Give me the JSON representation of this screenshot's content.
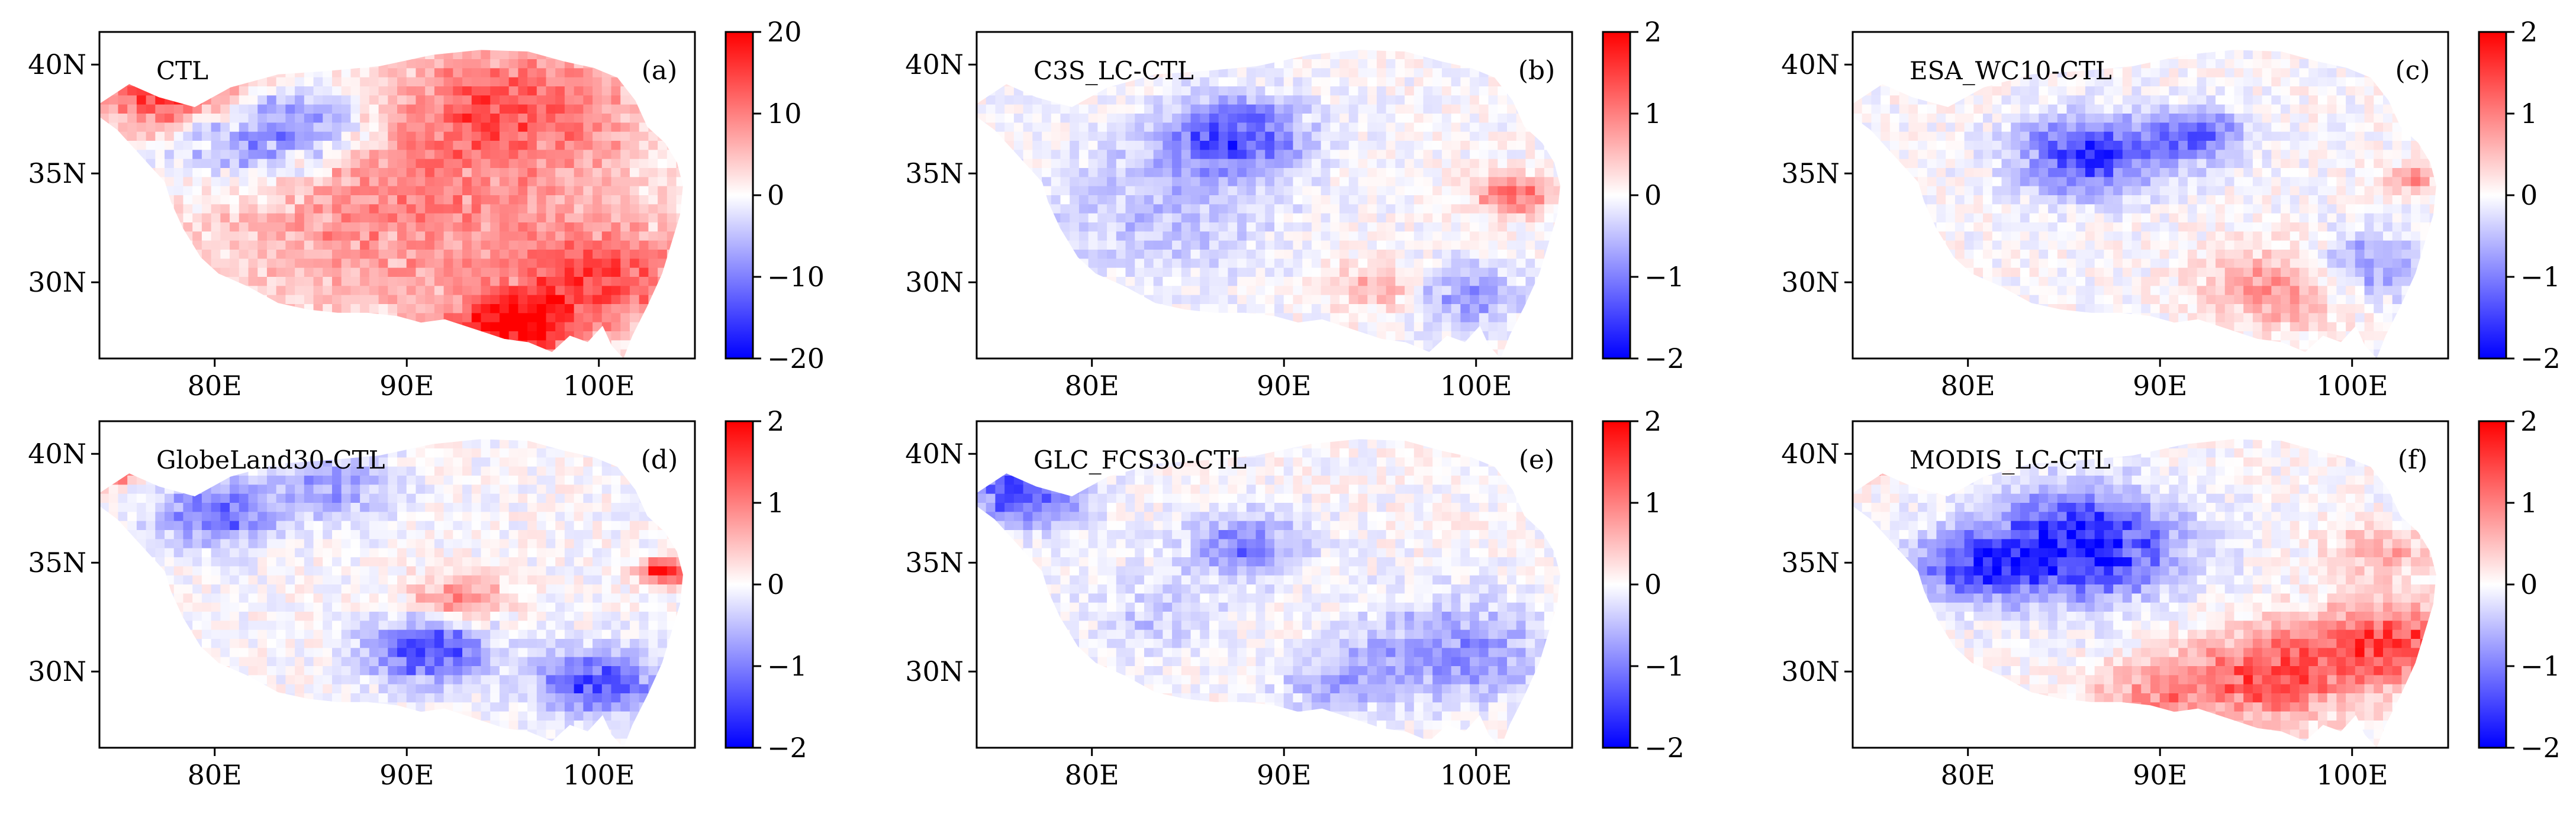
{
  "figure": {
    "type": "multi-panel gridded difference maps",
    "region": "Tibetan Plateau",
    "x_ticks": [
      "80E",
      "90E",
      "100E"
    ],
    "y_ticks": [
      "40N",
      "35N",
      "30N"
    ],
    "x_tick_values": [
      80,
      90,
      100
    ],
    "y_tick_values": [
      40,
      35,
      30
    ],
    "lon_range": [
      74,
      105
    ],
    "lat_range": [
      26.5,
      41.5
    ]
  },
  "colors": {
    "cmap_low": "#0000ff",
    "cmap_mid": "#ffffff",
    "cmap_high": "#ff0000",
    "land_outside": "#ffffff"
  },
  "chart_data": [
    {
      "type": "heatmap",
      "title": "CTL",
      "label": "(a)",
      "vmin": -20,
      "vmax": 20,
      "colorbar_ticks": [
        "20",
        "10",
        "0",
        "−10",
        "−20"
      ],
      "colorbar_tick_values": [
        20,
        10,
        0,
        -10,
        -20
      ],
      "xlim": [
        74,
        105
      ],
      "ylim": [
        26.5,
        41.5
      ]
    },
    {
      "type": "heatmap",
      "title": "C3S_LC-CTL",
      "label": "(b)",
      "vmin": -2,
      "vmax": 2,
      "colorbar_ticks": [
        "2",
        "1",
        "0",
        "−1",
        "−2"
      ],
      "colorbar_tick_values": [
        2,
        1,
        0,
        -1,
        -2
      ],
      "xlim": [
        74,
        105
      ],
      "ylim": [
        26.5,
        41.5
      ]
    },
    {
      "type": "heatmap",
      "title": "ESA_WC10-CTL",
      "label": "(c)",
      "vmin": -2,
      "vmax": 2,
      "colorbar_ticks": [
        "2",
        "1",
        "0",
        "−1",
        "−2"
      ],
      "colorbar_tick_values": [
        2,
        1,
        0,
        -1,
        -2
      ],
      "xlim": [
        74,
        105
      ],
      "ylim": [
        26.5,
        41.5
      ]
    },
    {
      "type": "heatmap",
      "title": "GlobeLand30-CTL",
      "label": "(d)",
      "vmin": -2,
      "vmax": 2,
      "colorbar_ticks": [
        "2",
        "1",
        "0",
        "−1",
        "−2"
      ],
      "colorbar_tick_values": [
        2,
        1,
        0,
        -1,
        -2
      ],
      "xlim": [
        74,
        105
      ],
      "ylim": [
        26.5,
        41.5
      ]
    },
    {
      "type": "heatmap",
      "title": "GLC_FCS30-CTL",
      "label": "(e)",
      "vmin": -2,
      "vmax": 2,
      "colorbar_ticks": [
        "2",
        "1",
        "0",
        "−1",
        "−2"
      ],
      "colorbar_tick_values": [
        2,
        1,
        0,
        -1,
        -2
      ],
      "xlim": [
        74,
        105
      ],
      "ylim": [
        26.5,
        41.5
      ]
    },
    {
      "type": "heatmap",
      "title": "MODIS_LC-CTL",
      "label": "(f)",
      "vmin": -2,
      "vmax": 2,
      "colorbar_ticks": [
        "2",
        "1",
        "0",
        "−1",
        "−2"
      ],
      "colorbar_tick_values": [
        2,
        1,
        0,
        -1,
        -2
      ],
      "xlim": [
        74,
        105
      ],
      "ylim": [
        26.5,
        41.5
      ]
    }
  ]
}
